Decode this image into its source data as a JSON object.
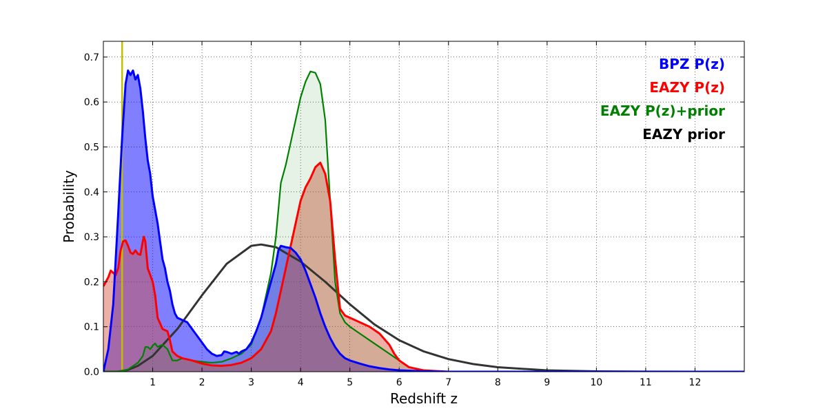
{
  "chart_data": {
    "type": "area",
    "xlabel": "Redshift z",
    "ylabel": "Probability",
    "xlim": [
      0,
      13
    ],
    "ylim": [
      0,
      0.735
    ],
    "xticks": [
      1,
      2,
      3,
      4,
      5,
      6,
      7,
      8,
      9,
      10,
      11,
      12
    ],
    "yticks": [
      0.0,
      0.1,
      0.2,
      0.3,
      0.4,
      0.5,
      0.6,
      0.7
    ],
    "xtick_labels": [
      "1",
      "2",
      "3",
      "4",
      "5",
      "6",
      "7",
      "8",
      "9",
      "10",
      "11",
      "12"
    ],
    "ytick_labels": [
      "0.0",
      "0.1",
      "0.2",
      "0.3",
      "0.4",
      "0.5",
      "0.6",
      "0.7"
    ],
    "grid": true,
    "legend_position": "top-right",
    "vertical_line": {
      "x": 0.38,
      "color": "#bfbf00"
    },
    "legend": [
      {
        "label": "BPZ P(z)",
        "color": "#0000ff"
      },
      {
        "label": "EAZY P(z)",
        "color": "#ff0000"
      },
      {
        "label": "EAZY P(z)+prior",
        "color": "#008000"
      },
      {
        "label": "EAZY prior",
        "color": "#000000"
      }
    ],
    "series": [
      {
        "name": "BPZ P(z)",
        "color": "#0000ff",
        "fill": "rgba(0,0,255,0.5)",
        "filled": true,
        "points": [
          [
            0,
            0
          ],
          [
            0.1,
            0.05
          ],
          [
            0.2,
            0.15
          ],
          [
            0.3,
            0.35
          ],
          [
            0.38,
            0.52
          ],
          [
            0.45,
            0.64
          ],
          [
            0.5,
            0.67
          ],
          [
            0.55,
            0.66
          ],
          [
            0.6,
            0.67
          ],
          [
            0.65,
            0.65
          ],
          [
            0.7,
            0.66
          ],
          [
            0.75,
            0.63
          ],
          [
            0.8,
            0.58
          ],
          [
            0.85,
            0.52
          ],
          [
            0.9,
            0.47
          ],
          [
            0.95,
            0.44
          ],
          [
            1.0,
            0.39
          ],
          [
            1.05,
            0.36
          ],
          [
            1.1,
            0.33
          ],
          [
            1.15,
            0.29
          ],
          [
            1.2,
            0.25
          ],
          [
            1.25,
            0.23
          ],
          [
            1.3,
            0.2
          ],
          [
            1.35,
            0.18
          ],
          [
            1.4,
            0.15
          ],
          [
            1.45,
            0.13
          ],
          [
            1.5,
            0.12
          ],
          [
            1.6,
            0.115
          ],
          [
            1.7,
            0.11
          ],
          [
            1.8,
            0.095
          ],
          [
            1.9,
            0.08
          ],
          [
            2.0,
            0.065
          ],
          [
            2.1,
            0.05
          ],
          [
            2.2,
            0.04
          ],
          [
            2.3,
            0.035
          ],
          [
            2.4,
            0.037
          ],
          [
            2.45,
            0.045
          ],
          [
            2.5,
            0.044
          ],
          [
            2.6,
            0.04
          ],
          [
            2.7,
            0.044
          ],
          [
            2.75,
            0.04
          ],
          [
            2.8,
            0.045
          ],
          [
            2.9,
            0.05
          ],
          [
            3.0,
            0.065
          ],
          [
            3.1,
            0.09
          ],
          [
            3.2,
            0.12
          ],
          [
            3.3,
            0.16
          ],
          [
            3.4,
            0.2
          ],
          [
            3.5,
            0.24
          ],
          [
            3.55,
            0.27
          ],
          [
            3.6,
            0.28
          ],
          [
            3.7,
            0.277
          ],
          [
            3.8,
            0.275
          ],
          [
            3.9,
            0.265
          ],
          [
            4.0,
            0.25
          ],
          [
            4.1,
            0.225
          ],
          [
            4.2,
            0.195
          ],
          [
            4.3,
            0.165
          ],
          [
            4.4,
            0.13
          ],
          [
            4.5,
            0.1
          ],
          [
            4.6,
            0.075
          ],
          [
            4.7,
            0.055
          ],
          [
            4.8,
            0.04
          ],
          [
            4.9,
            0.03
          ],
          [
            5.0,
            0.025
          ],
          [
            5.2,
            0.018
          ],
          [
            5.4,
            0.012
          ],
          [
            5.6,
            0.008
          ],
          [
            5.8,
            0.005
          ],
          [
            6.0,
            0.003
          ],
          [
            6.5,
            0.001
          ],
          [
            7,
            0
          ],
          [
            13,
            0
          ]
        ]
      },
      {
        "name": "EAZY P(z)",
        "color": "#ff0000",
        "fill": "rgba(215,80,60,0.45)",
        "filled": true,
        "points": [
          [
            0,
            0.19
          ],
          [
            0.05,
            0.2
          ],
          [
            0.1,
            0.21
          ],
          [
            0.15,
            0.225
          ],
          [
            0.2,
            0.22
          ],
          [
            0.25,
            0.215
          ],
          [
            0.3,
            0.23
          ],
          [
            0.35,
            0.27
          ],
          [
            0.4,
            0.29
          ],
          [
            0.45,
            0.292
          ],
          [
            0.5,
            0.28
          ],
          [
            0.55,
            0.265
          ],
          [
            0.6,
            0.262
          ],
          [
            0.65,
            0.27
          ],
          [
            0.7,
            0.262
          ],
          [
            0.75,
            0.26
          ],
          [
            0.8,
            0.29
          ],
          [
            0.82,
            0.3
          ],
          [
            0.85,
            0.29
          ],
          [
            0.9,
            0.23
          ],
          [
            1.0,
            0.2
          ],
          [
            1.05,
            0.17
          ],
          [
            1.1,
            0.12
          ],
          [
            1.2,
            0.095
          ],
          [
            1.3,
            0.09
          ],
          [
            1.35,
            0.07
          ],
          [
            1.4,
            0.045
          ],
          [
            1.5,
            0.035
          ],
          [
            1.6,
            0.03
          ],
          [
            1.8,
            0.025
          ],
          [
            2.0,
            0.018
          ],
          [
            2.2,
            0.014
          ],
          [
            2.4,
            0.013
          ],
          [
            2.6,
            0.015
          ],
          [
            2.8,
            0.02
          ],
          [
            3.0,
            0.03
          ],
          [
            3.2,
            0.05
          ],
          [
            3.4,
            0.09
          ],
          [
            3.5,
            0.13
          ],
          [
            3.6,
            0.18
          ],
          [
            3.7,
            0.23
          ],
          [
            3.8,
            0.28
          ],
          [
            3.9,
            0.33
          ],
          [
            4.0,
            0.38
          ],
          [
            4.1,
            0.41
          ],
          [
            4.2,
            0.43
          ],
          [
            4.3,
            0.455
          ],
          [
            4.4,
            0.465
          ],
          [
            4.5,
            0.44
          ],
          [
            4.6,
            0.38
          ],
          [
            4.7,
            0.25
          ],
          [
            4.8,
            0.14
          ],
          [
            4.9,
            0.125
          ],
          [
            5.0,
            0.12
          ],
          [
            5.2,
            0.11
          ],
          [
            5.4,
            0.1
          ],
          [
            5.6,
            0.085
          ],
          [
            5.8,
            0.06
          ],
          [
            5.9,
            0.04
          ],
          [
            6.0,
            0.025
          ],
          [
            6.2,
            0.01
          ],
          [
            6.5,
            0.003
          ],
          [
            7,
            0
          ],
          [
            13,
            0
          ]
        ]
      },
      {
        "name": "EAZY P(z)+prior",
        "color": "#008000",
        "fill": "rgba(0,128,0,0.1)",
        "filled": true,
        "points": [
          [
            0,
            0
          ],
          [
            0.3,
            0
          ],
          [
            0.5,
            0.005
          ],
          [
            0.7,
            0.02
          ],
          [
            0.8,
            0.035
          ],
          [
            0.85,
            0.055
          ],
          [
            0.9,
            0.055
          ],
          [
            0.95,
            0.05
          ],
          [
            1.0,
            0.058
          ],
          [
            1.05,
            0.063
          ],
          [
            1.1,
            0.055
          ],
          [
            1.15,
            0.058
          ],
          [
            1.2,
            0.06
          ],
          [
            1.3,
            0.05
          ],
          [
            1.4,
            0.025
          ],
          [
            1.5,
            0.025
          ],
          [
            1.6,
            0.03
          ],
          [
            1.8,
            0.025
          ],
          [
            2.0,
            0.022
          ],
          [
            2.2,
            0.02
          ],
          [
            2.4,
            0.022
          ],
          [
            2.6,
            0.03
          ],
          [
            2.7,
            0.035
          ],
          [
            2.8,
            0.04
          ],
          [
            3.0,
            0.06
          ],
          [
            3.2,
            0.12
          ],
          [
            3.4,
            0.22
          ],
          [
            3.5,
            0.3
          ],
          [
            3.6,
            0.42
          ],
          [
            3.7,
            0.46
          ],
          [
            3.8,
            0.51
          ],
          [
            3.9,
            0.56
          ],
          [
            4.0,
            0.61
          ],
          [
            4.1,
            0.645
          ],
          [
            4.2,
            0.668
          ],
          [
            4.3,
            0.665
          ],
          [
            4.4,
            0.64
          ],
          [
            4.5,
            0.56
          ],
          [
            4.6,
            0.38
          ],
          [
            4.7,
            0.2
          ],
          [
            4.8,
            0.13
          ],
          [
            4.9,
            0.11
          ],
          [
            5.0,
            0.1
          ],
          [
            5.2,
            0.085
          ],
          [
            5.4,
            0.07
          ],
          [
            5.6,
            0.055
          ],
          [
            5.8,
            0.04
          ],
          [
            6.0,
            0.025
          ],
          [
            6.2,
            0.01
          ],
          [
            6.5,
            0.002
          ],
          [
            7,
            0
          ],
          [
            13,
            0
          ]
        ]
      },
      {
        "name": "EAZY prior",
        "color": "#333333",
        "filled": false,
        "points": [
          [
            0,
            0
          ],
          [
            0.3,
            0.0002
          ],
          [
            0.5,
            0.004
          ],
          [
            0.7,
            0.013
          ],
          [
            1.0,
            0.035
          ],
          [
            1.5,
            0.095
          ],
          [
            2.0,
            0.17
          ],
          [
            2.5,
            0.24
          ],
          [
            3.0,
            0.28
          ],
          [
            3.2,
            0.283
          ],
          [
            3.5,
            0.277
          ],
          [
            4.0,
            0.245
          ],
          [
            4.5,
            0.2
          ],
          [
            5.0,
            0.15
          ],
          [
            5.5,
            0.105
          ],
          [
            6.0,
            0.07
          ],
          [
            6.5,
            0.045
          ],
          [
            7.0,
            0.028
          ],
          [
            7.5,
            0.017
          ],
          [
            8.0,
            0.01
          ],
          [
            9.0,
            0.003
          ],
          [
            10.0,
            0.0008
          ],
          [
            11.0,
            0.0002
          ],
          [
            12.0,
            0
          ],
          [
            13.0,
            0
          ]
        ]
      }
    ]
  }
}
